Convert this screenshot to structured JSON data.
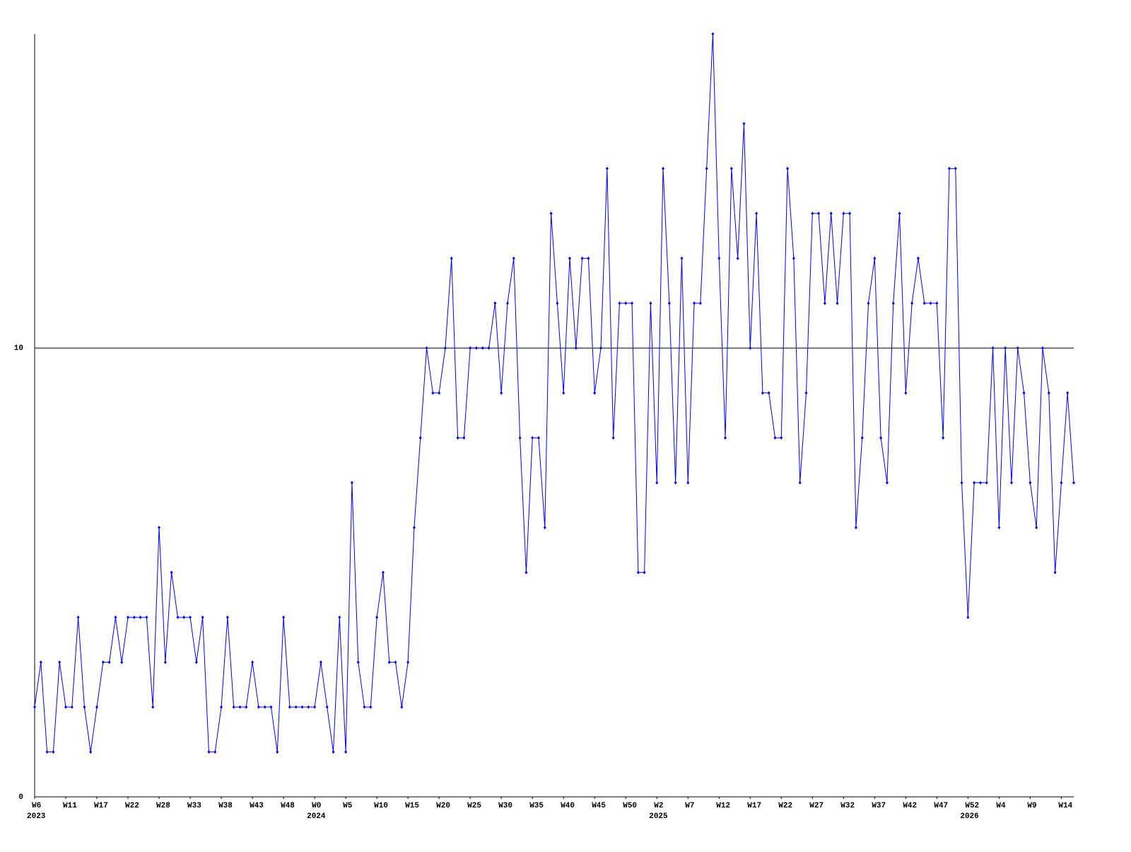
{
  "chart_data": {
    "type": "line",
    "categories": [
      "W6",
      null,
      null,
      null,
      null,
      "W11",
      null,
      null,
      null,
      null,
      "W17",
      null,
      null,
      null,
      null,
      "W22",
      null,
      null,
      null,
      null,
      "W28",
      null,
      null,
      null,
      null,
      "W33",
      null,
      null,
      null,
      null,
      "W38",
      null,
      null,
      null,
      null,
      "W43",
      null,
      null,
      null,
      null,
      "W48",
      null,
      null,
      null,
      null,
      "W0",
      null,
      null,
      null,
      null,
      "W5",
      null,
      null,
      null,
      null,
      "W10",
      null,
      null,
      null,
      null,
      "W15",
      null,
      null,
      null,
      null,
      "W20",
      null,
      null,
      null,
      null,
      "W25",
      null,
      null,
      null,
      null,
      "W30",
      null,
      null,
      null,
      null,
      "W35",
      null,
      null,
      null,
      null,
      "W40",
      null,
      null,
      null,
      null,
      "W45",
      null,
      null,
      null,
      null,
      "W50",
      null,
      null,
      null,
      null,
      "W2",
      null,
      null,
      null,
      null,
      "W7",
      null,
      null,
      null,
      null,
      "W12",
      null,
      null,
      null,
      null,
      "W17",
      null,
      null,
      null,
      null,
      "W22",
      null,
      null,
      null,
      null,
      "W27",
      null,
      null,
      null,
      null,
      "W32",
      null,
      null,
      null,
      null,
      "W37",
      null,
      null,
      null,
      null,
      "W42",
      null,
      null,
      null,
      null,
      "W47",
      null,
      null,
      null,
      null,
      "W52",
      null,
      null,
      null,
      null,
      "W4",
      null,
      null,
      null,
      null,
      "W9",
      null,
      null,
      null,
      null,
      "W14",
      null,
      null
    ],
    "x_years": [
      "2023",
      null,
      null,
      null,
      null,
      null,
      null,
      null,
      null,
      null,
      null,
      null,
      null,
      null,
      null,
      null,
      null,
      null,
      null,
      null,
      null,
      null,
      null,
      null,
      null,
      null,
      null,
      null,
      null,
      null,
      null,
      null,
      null,
      null,
      null,
      null,
      null,
      null,
      null,
      null,
      null,
      null,
      null,
      null,
      null,
      "2024",
      null,
      null,
      null,
      null,
      null,
      null,
      null,
      null,
      null,
      null,
      null,
      null,
      null,
      null,
      null,
      null,
      null,
      null,
      null,
      null,
      null,
      null,
      null,
      null,
      null,
      null,
      null,
      null,
      null,
      null,
      null,
      null,
      null,
      null,
      null,
      null,
      null,
      null,
      null,
      null,
      null,
      null,
      null,
      null,
      null,
      null,
      null,
      null,
      null,
      null,
      null,
      null,
      null,
      null,
      "2025",
      null,
      null,
      null,
      null,
      null,
      null,
      null,
      null,
      null,
      null,
      null,
      null,
      null,
      null,
      null,
      null,
      null,
      null,
      null,
      null,
      null,
      null,
      null,
      null,
      null,
      null,
      null,
      null,
      null,
      null,
      null,
      null,
      null,
      null,
      null,
      null,
      null,
      null,
      null,
      null,
      null,
      null,
      null,
      null,
      null,
      null,
      null,
      null,
      null,
      "2026",
      null,
      null,
      null,
      null,
      null,
      null,
      null,
      null,
      null,
      null,
      null,
      null,
      null,
      null,
      null,
      null,
      null
    ],
    "values": [
      2,
      3,
      1,
      1,
      3,
      2,
      2,
      4,
      2,
      1,
      2,
      3,
      3,
      4,
      3,
      4,
      4,
      4,
      4,
      2,
      6,
      3,
      5,
      4,
      4,
      4,
      3,
      4,
      1,
      1,
      2,
      4,
      2,
      2,
      2,
      3,
      2,
      2,
      2,
      1,
      4,
      2,
      2,
      2,
      2,
      2,
      3,
      2,
      1,
      4,
      1,
      7,
      3,
      2,
      2,
      4,
      5,
      3,
      3,
      2,
      3,
      6,
      8,
      10,
      9,
      9,
      10,
      12,
      8,
      8,
      10,
      10,
      10,
      10,
      11,
      9,
      11,
      12,
      8,
      5,
      8,
      8,
      6,
      13,
      11,
      9,
      12,
      10,
      12,
      12,
      9,
      10,
      14,
      8,
      11,
      11,
      11,
      5,
      5,
      11,
      7,
      14,
      11,
      7,
      12,
      7,
      11,
      11,
      14,
      17,
      12,
      8,
      14,
      12,
      15,
      10,
      13,
      9,
      9,
      8,
      8,
      14,
      12,
      7,
      9,
      13,
      13,
      11,
      13,
      11,
      13,
      13,
      6,
      8,
      11,
      12,
      8,
      7,
      11,
      13,
      9,
      11,
      12,
      11,
      11,
      11,
      8,
      14,
      14,
      7,
      4,
      7,
      7,
      7,
      10,
      6,
      10,
      7,
      10,
      9,
      7,
      6,
      10,
      9,
      5,
      7,
      9,
      7
    ],
    "color": "#0000ff",
    "ylim": [
      0,
      17
    ],
    "yticks": [
      0,
      10
    ],
    "grid_ticks": [
      10
    ]
  }
}
